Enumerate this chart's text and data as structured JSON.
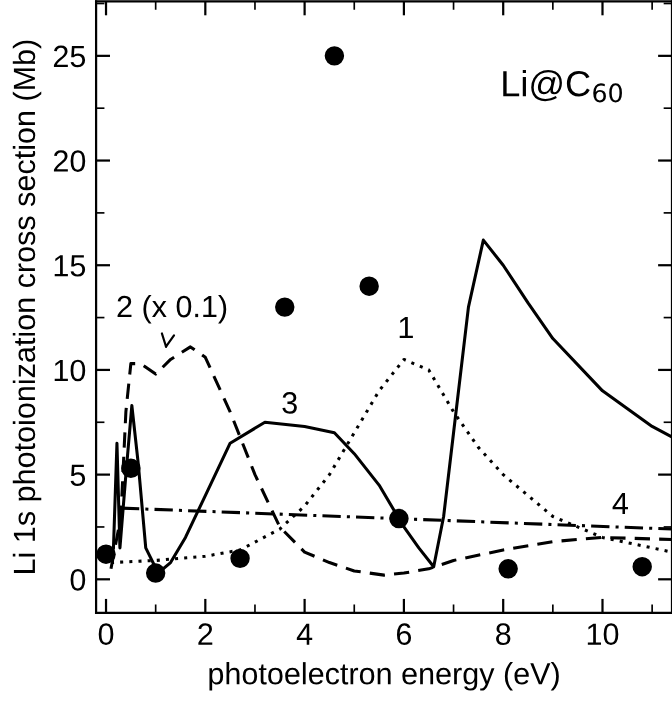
{
  "chart_data": {
    "type": "line",
    "xlabel": "photoelectron energy (eV)",
    "ylabel": "Li 1s photoionization cross section (Mb)",
    "xlim": [
      -0.2,
      11.4
    ],
    "xticks": [
      0,
      2,
      4,
      6,
      8,
      10
    ],
    "ylim": [
      -1.6,
      27.6
    ],
    "yticks": [
      0,
      5,
      10,
      15,
      20,
      25
    ],
    "grid": false,
    "legend": false,
    "series": [
      {
        "name": "1",
        "line_style": "dotted",
        "color": "#000000",
        "x": [
          0.1,
          1,
          2,
          2.7,
          3.5,
          4,
          4.5,
          5,
          5.5,
          6.0,
          6.5,
          7,
          7.5,
          8,
          9,
          10,
          11.4
        ],
        "values": [
          0.8,
          0.9,
          1.1,
          1.4,
          2.4,
          3.5,
          5.0,
          7.0,
          9.0,
          10.5,
          10.0,
          8.0,
          6.3,
          5.0,
          3.0,
          2.0,
          1.3
        ]
      },
      {
        "name": "2 (x 0.1)",
        "line_style": "dashed",
        "color": "#000000",
        "x": [
          0.1,
          0.3,
          0.4,
          0.5,
          0.7,
          1.0,
          1.3,
          1.7,
          2.0,
          2.5,
          3.0,
          3.5,
          4.0,
          4.5,
          5.0,
          5.6,
          6.0,
          6.5,
          7,
          8,
          9,
          10,
          11.4
        ],
        "values": [
          0.5,
          3.0,
          8.0,
          10.3,
          10.3,
          9.8,
          10.5,
          11.1,
          10.6,
          8.0,
          5.0,
          2.5,
          1.3,
          0.8,
          0.4,
          0.2,
          0.3,
          0.5,
          0.9,
          1.4,
          1.8,
          2.0,
          1.9
        ]
      },
      {
        "name": "3",
        "line_style": "solid",
        "color": "#000000",
        "x": [
          0.15,
          0.22,
          0.28,
          0.4,
          0.52,
          0.65,
          0.8,
          1.05,
          1.3,
          1.6,
          2.0,
          2.5,
          3.2,
          4.0,
          4.6,
          5.0,
          5.5,
          6.0,
          6.3,
          6.6,
          6.8,
          7.0,
          7.3,
          7.6,
          8.0,
          8.5,
          9.0,
          10.0,
          11.0,
          11.4
        ],
        "values": [
          1.5,
          6.5,
          1.5,
          5.0,
          8.3,
          5.5,
          1.5,
          0.3,
          0.8,
          2.0,
          4.0,
          6.5,
          7.5,
          7.3,
          7.0,
          6.0,
          4.5,
          2.5,
          1.5,
          0.6,
          3.0,
          7.0,
          13.0,
          16.2,
          15.0,
          13.2,
          11.5,
          9.0,
          7.3,
          6.8
        ]
      },
      {
        "name": "4",
        "line_style": "dashdot",
        "color": "#000000",
        "x": [
          0.3,
          11.4
        ],
        "values": [
          3.4,
          2.4
        ]
      },
      {
        "type": "scatter",
        "marker": "circle",
        "color": "#000000",
        "x": [
          0,
          0.5,
          1.0,
          2.7,
          3.6,
          4.6,
          5.3,
          5.9,
          8.1,
          10.8
        ],
        "values": [
          1.2,
          5.3,
          0.3,
          1.0,
          13.0,
          25.0,
          14.0,
          2.9,
          0.5,
          0.6
        ]
      }
    ],
    "annotations": [
      "Li@C$_{60}$"
    ]
  }
}
